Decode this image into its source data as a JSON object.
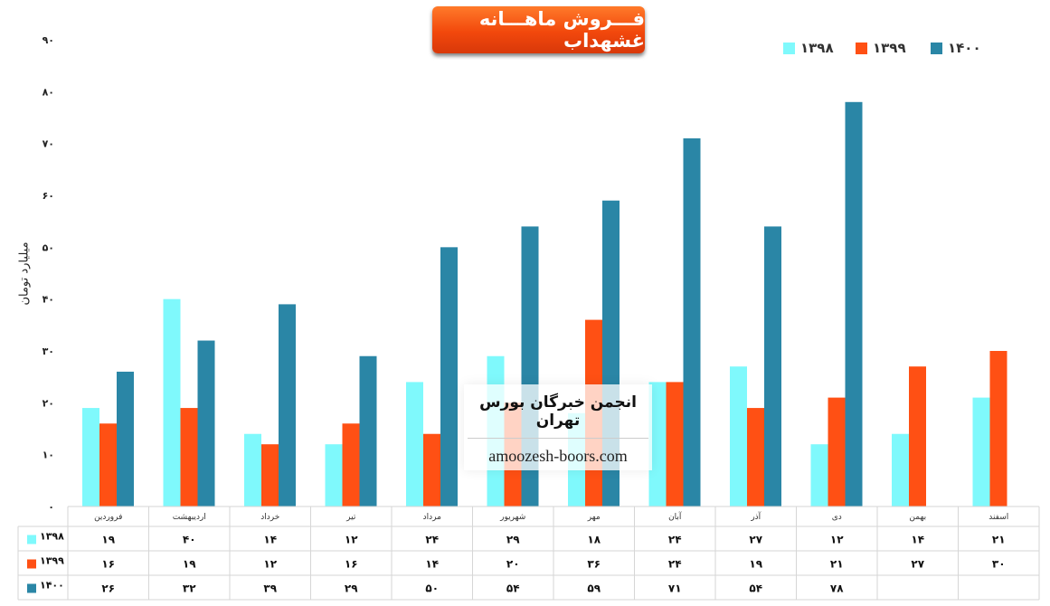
{
  "title": "فـــروش ماهـــانه غشهداب",
  "watermark": {
    "line1": "انجمن خبرگان بورس تهران",
    "line2": "amoozesh-boors.com"
  },
  "colors": {
    "1398": "#7ff9fc",
    "1399": "#ff5014",
    "1400": "#2a86a6"
  },
  "chart_data": {
    "type": "bar",
    "title": "فـــروش ماهـــانه غشهداب",
    "ylabel": "میلیارد تومان",
    "xlabel": "",
    "ylim": [
      0,
      90
    ],
    "yticks": [
      "۰",
      "۱۰",
      "۲۰",
      "۳۰",
      "۴۰",
      "۵۰",
      "۶۰",
      "۷۰",
      "۸۰",
      "۹۰"
    ],
    "legend_position": "top-right",
    "categories": [
      "فروردین",
      "اردیبهشت",
      "خرداد",
      "تیر",
      "مرداد",
      "شهریور",
      "مهر",
      "آبان",
      "آذر",
      "دی",
      "بهمن",
      "اسفند"
    ],
    "series": [
      {
        "name": "۱۳۹۸",
        "key": "1398",
        "values": [
          19,
          40,
          14,
          12,
          24,
          29,
          18,
          24,
          27,
          12,
          14,
          21
        ]
      },
      {
        "name": "۱۳۹۹",
        "key": "1399",
        "values": [
          16,
          19,
          12,
          16,
          14,
          20,
          36,
          24,
          19,
          21,
          27,
          30
        ]
      },
      {
        "name": "۱۴۰۰",
        "key": "1400",
        "values": [
          26,
          32,
          39,
          29,
          50,
          54,
          59,
          71,
          54,
          78,
          null,
          null
        ]
      }
    ]
  }
}
